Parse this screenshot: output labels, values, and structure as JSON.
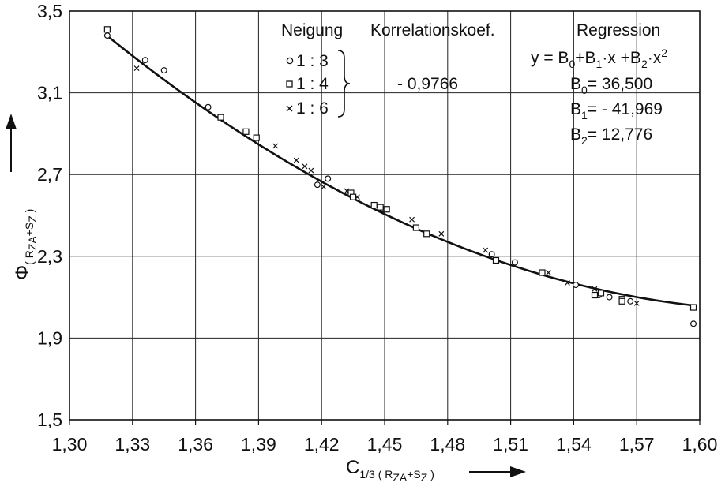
{
  "chart_data": {
    "type": "scatter",
    "xlim": [
      1.3,
      1.6
    ],
    "ylim": [
      1.5,
      3.5
    ],
    "xticks": [
      "1,30",
      "1,33",
      "1,36",
      "1,39",
      "1,42",
      "1,45",
      "1,48",
      "1,51",
      "1,54",
      "1,57",
      "1,60"
    ],
    "xtick_values": [
      1.3,
      1.33,
      1.36,
      1.39,
      1.42,
      1.45,
      1.48,
      1.51,
      1.54,
      1.57,
      1.6
    ],
    "yticks": [
      "1,5",
      "1,9",
      "2,3",
      "2,7",
      "3,1",
      "3,5"
    ],
    "ytick_values": [
      1.5,
      1.9,
      2.3,
      2.7,
      3.1,
      3.5
    ],
    "grid": true,
    "xlabel": {
      "main": "C",
      "sub": "1/3 ( R",
      "sub2": "ZA",
      "mid": "+S",
      "sub3": "Z",
      "end": " )"
    },
    "ylabel": {
      "main": "Φ",
      "sub": "( R",
      "sub2": "ZA",
      "mid": "+S",
      "sub3": "Z",
      "end": " )"
    },
    "legend": {
      "neigung_header": "Neigung",
      "korrel_header": "Korrelationskoef.",
      "regression_header": "Regression",
      "entries": [
        "1 : 3",
        "1 : 4",
        "1 : 6"
      ],
      "markers": [
        "circle",
        "square",
        "cross"
      ],
      "correlation": "- 0,9766",
      "formula": "y = B0 + B1 · x + B2 · x²",
      "b0_label": "B",
      "b0_sub": "0",
      "b0_value": "=  36,500",
      "b1_label": "B",
      "b1_sub": "1",
      "b1_value": "= - 41,969",
      "b2_label": "B",
      "b2_sub": "2",
      "b2_value": "=  12,776"
    },
    "regression": {
      "B0": 36.5,
      "B1": -41.969,
      "B2": 12.776,
      "x_from": 1.318,
      "x_to": 1.597
    },
    "series": [
      {
        "name": "1 : 3",
        "marker": "circle",
        "points": [
          [
            1.318,
            3.38
          ],
          [
            1.336,
            3.26
          ],
          [
            1.345,
            3.21
          ],
          [
            1.366,
            3.03
          ],
          [
            1.418,
            2.65
          ],
          [
            1.423,
            2.68
          ],
          [
            1.449,
            2.53
          ],
          [
            1.501,
            2.31
          ],
          [
            1.512,
            2.27
          ],
          [
            1.541,
            2.16
          ],
          [
            1.552,
            2.11
          ],
          [
            1.557,
            2.1
          ],
          [
            1.567,
            2.08
          ],
          [
            1.597,
            1.97
          ]
        ]
      },
      {
        "name": "1 : 4",
        "marker": "square",
        "points": [
          [
            1.318,
            3.41
          ],
          [
            1.372,
            2.98
          ],
          [
            1.384,
            2.91
          ],
          [
            1.389,
            2.88
          ],
          [
            1.434,
            2.61
          ],
          [
            1.435,
            2.59
          ],
          [
            1.445,
            2.55
          ],
          [
            1.448,
            2.54
          ],
          [
            1.451,
            2.53
          ],
          [
            1.465,
            2.44
          ],
          [
            1.47,
            2.41
          ],
          [
            1.503,
            2.28
          ],
          [
            1.525,
            2.22
          ],
          [
            1.55,
            2.11
          ],
          [
            1.553,
            2.12
          ],
          [
            1.563,
            2.09
          ],
          [
            1.563,
            2.08
          ],
          [
            1.597,
            2.05
          ]
        ]
      },
      {
        "name": "1 : 6",
        "marker": "cross",
        "points": [
          [
            1.332,
            3.22
          ],
          [
            1.398,
            2.84
          ],
          [
            1.408,
            2.77
          ],
          [
            1.412,
            2.74
          ],
          [
            1.415,
            2.72
          ],
          [
            1.421,
            2.64
          ],
          [
            1.432,
            2.62
          ],
          [
            1.437,
            2.59
          ],
          [
            1.463,
            2.48
          ],
          [
            1.477,
            2.41
          ],
          [
            1.498,
            2.33
          ],
          [
            1.528,
            2.22
          ],
          [
            1.537,
            2.17
          ],
          [
            1.55,
            2.14
          ],
          [
            1.57,
            2.07
          ]
        ]
      }
    ]
  }
}
